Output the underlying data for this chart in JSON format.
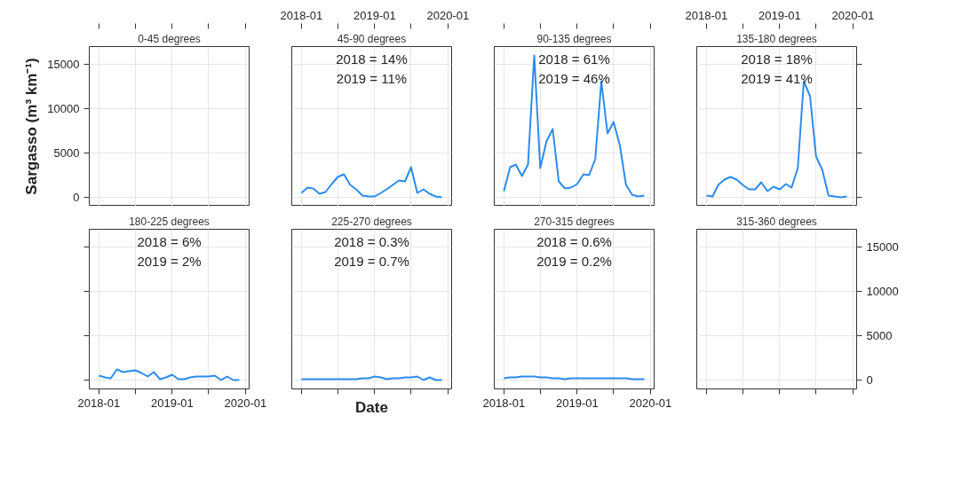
{
  "chart_data": [
    {
      "type": "line",
      "title": "0-45 degrees",
      "ylabel": "Sargasso (m³ km⁻¹)",
      "xlim": [
        "2017-11-14",
        "2020-01-19"
      ],
      "ylim": [
        -1000,
        17000
      ],
      "xticks": [
        "2018-01",
        {
          "value": "2018-07",
          "label": null
        },
        "2019-01",
        {
          "value": "2019-07",
          "label": null
        },
        "2020-01"
      ],
      "yticks": [
        0,
        5000,
        10000,
        15000
      ],
      "grid": true,
      "tick_labels": "y"
    },
    {
      "type": "line",
      "title": "45-90 degrees",
      "annotations": [
        "2018 = 14%",
        "2019 = 11%"
      ],
      "color": "#2b8cee",
      "x": [
        "2018-01",
        "2018-02",
        "2018-03",
        "2018-04",
        "2018-05",
        "2018-06",
        "2018-07",
        "2018-08",
        "2018-09",
        "2018-10",
        "2018-11",
        "2018-12",
        "2019-01",
        "2019-02",
        "2019-03",
        "2019-04",
        "2019-05",
        "2019-06",
        "2019-07",
        "2019-08",
        "2019-09",
        "2019-10",
        "2019-11",
        "2019-12"
      ],
      "values": [
        500,
        1100,
        1000,
        400,
        600,
        1500,
        2300,
        2600,
        1400,
        900,
        200,
        100,
        100,
        500,
        900,
        1400,
        1900,
        1800,
        3400,
        500,
        900,
        400,
        100,
        0
      ],
      "xlim": [
        "2017-11-14",
        "2020-01-19"
      ],
      "ylim": [
        -1000,
        17000
      ],
      "xticks": [
        "2018-01",
        {
          "value": "2018-07",
          "label": null
        },
        "2019-01",
        {
          "value": "2019-07",
          "label": null
        },
        "2020-01"
      ],
      "yticks": [
        0,
        5000,
        10000,
        15000
      ],
      "grid": true,
      "tick_labels": "x"
    },
    {
      "type": "line",
      "title": "90-135 degrees",
      "annotations": [
        "2018 = 61%",
        "2019 = 46%"
      ],
      "color": "#2b8cee",
      "x": [
        "2018-01",
        "2018-02",
        "2018-03",
        "2018-04",
        "2018-05",
        "2018-06",
        "2018-07",
        "2018-08",
        "2018-09",
        "2018-10",
        "2018-11",
        "2018-12",
        "2019-01",
        "2019-02",
        "2019-03",
        "2019-04",
        "2019-05",
        "2019-06",
        "2019-07",
        "2019-08",
        "2019-09",
        "2019-10",
        "2019-11",
        "2019-12"
      ],
      "values": [
        700,
        3400,
        3700,
        2400,
        3700,
        16000,
        3300,
        6300,
        7700,
        1800,
        1000,
        1100,
        1500,
        2600,
        2500,
        4300,
        13100,
        7200,
        8500,
        5900,
        1400,
        300,
        100,
        200
      ],
      "xlim": [
        "2017-11-14",
        "2020-01-19"
      ],
      "ylim": [
        -1000,
        17000
      ],
      "xticks": [
        "2018-01",
        {
          "value": "2018-07",
          "label": null
        },
        "2019-01",
        {
          "value": "2019-07",
          "label": null
        },
        "2020-01"
      ],
      "yticks": [
        0,
        5000,
        10000,
        15000
      ],
      "grid": true,
      "tick_labels": false
    },
    {
      "type": "line",
      "title": "135-180 degrees",
      "annotations": [
        "2018 = 18%",
        "2019 = 41%"
      ],
      "color": "#2b8cee",
      "x": [
        "2018-01",
        "2018-02",
        "2018-03",
        "2018-04",
        "2018-05",
        "2018-06",
        "2018-07",
        "2018-08",
        "2018-09",
        "2018-10",
        "2018-11",
        "2018-12",
        "2019-01",
        "2019-02",
        "2019-03",
        "2019-04",
        "2019-05",
        "2019-06",
        "2019-07",
        "2019-08",
        "2019-09",
        "2019-10",
        "2019-11",
        "2019-12"
      ],
      "values": [
        200,
        100,
        1400,
        2000,
        2300,
        2000,
        1400,
        900,
        900,
        1700,
        700,
        1200,
        900,
        1500,
        1100,
        3300,
        13100,
        11400,
        4600,
        3100,
        200,
        100,
        0,
        100
      ],
      "xlim": [
        "2017-11-14",
        "2020-01-19"
      ],
      "ylim": [
        -1000,
        17000
      ],
      "xticks": [
        "2018-01",
        {
          "value": "2018-07",
          "label": null
        },
        "2019-01",
        {
          "value": "2019-07",
          "label": null
        },
        "2020-01"
      ],
      "yticks": [
        0,
        5000,
        10000,
        15000
      ],
      "grid": true,
      "tick_labels": "x"
    },
    {
      "type": "line",
      "title": "180-225 degrees",
      "annotations": [
        "2018 = 6%",
        "2019 = 2%"
      ],
      "color": "#2b8cee",
      "x": [
        "2018-01",
        "2018-02",
        "2018-03",
        "2018-04",
        "2018-05",
        "2018-06",
        "2018-07",
        "2018-08",
        "2018-09",
        "2018-10",
        "2018-11",
        "2018-12",
        "2019-01",
        "2019-02",
        "2019-03",
        "2019-04",
        "2019-05",
        "2019-06",
        "2019-07",
        "2019-08",
        "2019-09",
        "2019-10",
        "2019-11",
        "2019-12"
      ],
      "values": [
        500,
        300,
        200,
        1200,
        900,
        1000,
        1100,
        800,
        400,
        900,
        100,
        300,
        600,
        100,
        100,
        300,
        400,
        400,
        400,
        500,
        0,
        400,
        0,
        0
      ],
      "xlim": [
        "2017-11-14",
        "2020-01-19"
      ],
      "ylim": [
        -1000,
        17000
      ],
      "xticks": [
        "2018-01",
        {
          "value": "2018-07",
          "label": null
        },
        "2019-01",
        {
          "value": "2019-07",
          "label": null
        },
        "2020-01"
      ],
      "yticks": [
        0,
        5000,
        10000,
        15000
      ],
      "grid": true,
      "tick_labels": "x"
    },
    {
      "type": "line",
      "title": "225-270 degrees",
      "xlabel": "Date",
      "annotations": [
        "2018 = 0.3%",
        "2019 = 0.7%"
      ],
      "color": "#2b8cee",
      "x": [
        "2018-01",
        "2018-02",
        "2018-03",
        "2018-04",
        "2018-05",
        "2018-06",
        "2018-07",
        "2018-08",
        "2018-09",
        "2018-10",
        "2018-11",
        "2018-12",
        "2019-01",
        "2019-02",
        "2019-03",
        "2019-04",
        "2019-05",
        "2019-06",
        "2019-07",
        "2019-08",
        "2019-09",
        "2019-10",
        "2019-11",
        "2019-12"
      ],
      "values": [
        100,
        100,
        100,
        100,
        100,
        100,
        100,
        100,
        100,
        100,
        200,
        200,
        400,
        300,
        100,
        200,
        200,
        300,
        300,
        400,
        0,
        300,
        0,
        0
      ],
      "xlim": [
        "2017-11-14",
        "2020-01-19"
      ],
      "ylim": [
        -1000,
        17000
      ],
      "xticks": [
        "2018-01",
        {
          "value": "2018-07",
          "label": null
        },
        "2019-01",
        {
          "value": "2019-07",
          "label": null
        },
        "2020-01"
      ],
      "yticks": [
        0,
        5000,
        10000,
        15000
      ],
      "grid": true,
      "tick_labels": false
    },
    {
      "type": "line",
      "title": "270-315 degrees",
      "annotations": [
        "2018 = 0.6%",
        "2019 = 0.2%"
      ],
      "color": "#2b8cee",
      "x": [
        "2018-01",
        "2018-02",
        "2018-03",
        "2018-04",
        "2018-05",
        "2018-06",
        "2018-07",
        "2018-08",
        "2018-09",
        "2018-10",
        "2018-11",
        "2018-12",
        "2019-01",
        "2019-02",
        "2019-03",
        "2019-04",
        "2019-05",
        "2019-06",
        "2019-07",
        "2019-08",
        "2019-09",
        "2019-10",
        "2019-11",
        "2019-12"
      ],
      "values": [
        200,
        300,
        300,
        400,
        400,
        400,
        300,
        300,
        200,
        200,
        100,
        200,
        200,
        200,
        200,
        200,
        200,
        200,
        200,
        200,
        200,
        100,
        100,
        100
      ],
      "xlim": [
        "2017-11-14",
        "2020-01-19"
      ],
      "ylim": [
        -1000,
        17000
      ],
      "xticks": [
        "2018-01",
        {
          "value": "2018-07",
          "label": null
        },
        "2019-01",
        {
          "value": "2019-07",
          "label": null
        },
        "2020-01"
      ],
      "yticks": [
        0,
        5000,
        10000,
        15000
      ],
      "grid": true,
      "tick_labels": "x"
    },
    {
      "type": "line",
      "title": "315-360 degrees",
      "xlim": [
        "2017-11-14",
        "2020-01-19"
      ],
      "ylim": [
        -1000,
        17000
      ],
      "xticks": [
        "2018-01",
        {
          "value": "2018-07",
          "label": null
        },
        "2019-01",
        {
          "value": "2019-07",
          "label": null
        },
        "2020-01"
      ],
      "yticks": [
        0,
        5000,
        10000,
        15000
      ],
      "grid": true,
      "tick_labels": "y"
    }
  ]
}
